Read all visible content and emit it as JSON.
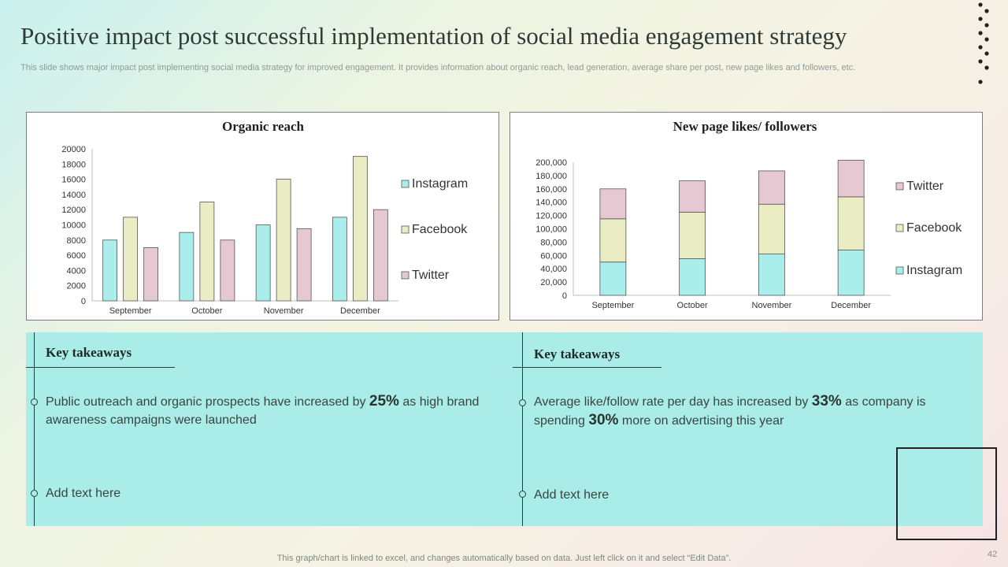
{
  "title": "Positive impact post successful implementation of social media engagement strategy",
  "subtitle": "This slide shows major impact post implementing social media strategy for improved engagement. It provides information about organic reach, lead generation, average share per post, new page likes and followers, etc.",
  "chart_data": [
    {
      "type": "bar",
      "title": "Organic reach",
      "categories": [
        "September",
        "October",
        "November",
        "December"
      ],
      "ylim": [
        0,
        20000
      ],
      "yticks": [
        "0",
        "2000",
        "4000",
        "6000",
        "8000",
        "10000",
        "12000",
        "14000",
        "16000",
        "18000",
        "20000"
      ],
      "legend_position": "right",
      "series": [
        {
          "name": "Instagram",
          "color": "#aaeeec",
          "values": [
            8000,
            9000,
            10000,
            11000
          ]
        },
        {
          "name": "Facebook",
          "color": "#eaecc4",
          "values": [
            11000,
            13000,
            16000,
            19000
          ]
        },
        {
          "name": "Twitter",
          "color": "#e6c8d3",
          "values": [
            7000,
            8000,
            9500,
            12000
          ]
        }
      ]
    },
    {
      "type": "bar",
      "stacked": true,
      "title": "New page likes/ followers",
      "categories": [
        "September",
        "October",
        "November",
        "December"
      ],
      "ylim": [
        0,
        200000
      ],
      "yticks": [
        "0",
        "20,000",
        "40,000",
        "60,000",
        "80,000",
        "100,000",
        "120,000",
        "140,000",
        "160,000",
        "180,000",
        "200,000"
      ],
      "legend_position": "right",
      "series": [
        {
          "name": "Instagram",
          "color": "#aaeeec",
          "values": [
            50000,
            55000,
            62000,
            68000
          ]
        },
        {
          "name": "Facebook",
          "color": "#eaecc4",
          "values": [
            65000,
            70000,
            75000,
            80000
          ]
        },
        {
          "name": "Twitter",
          "color": "#e6c8d3",
          "values": [
            45000,
            47000,
            50000,
            55000
          ]
        }
      ]
    }
  ],
  "takeaways": [
    {
      "heading": "Key takeaways",
      "point1_pre": "Public outreach and organic prospects have increased by ",
      "point1_big": "25%",
      "point1_post": " as high brand awareness campaigns were launched",
      "point2": "Add text here"
    },
    {
      "heading": "Key takeaways",
      "point1_pre": "Average like/follow rate per day has increased by ",
      "point1_big": "33%",
      "point1_mid": " as company is spending ",
      "point1_big2": "30%",
      "point1_post": " more on advertising this year",
      "point2": "Add text here"
    }
  ],
  "footer": "This graph/chart is linked to excel,  and changes automatically based on data. Just left click on it and select “Edit Data”.",
  "page_number": "42"
}
